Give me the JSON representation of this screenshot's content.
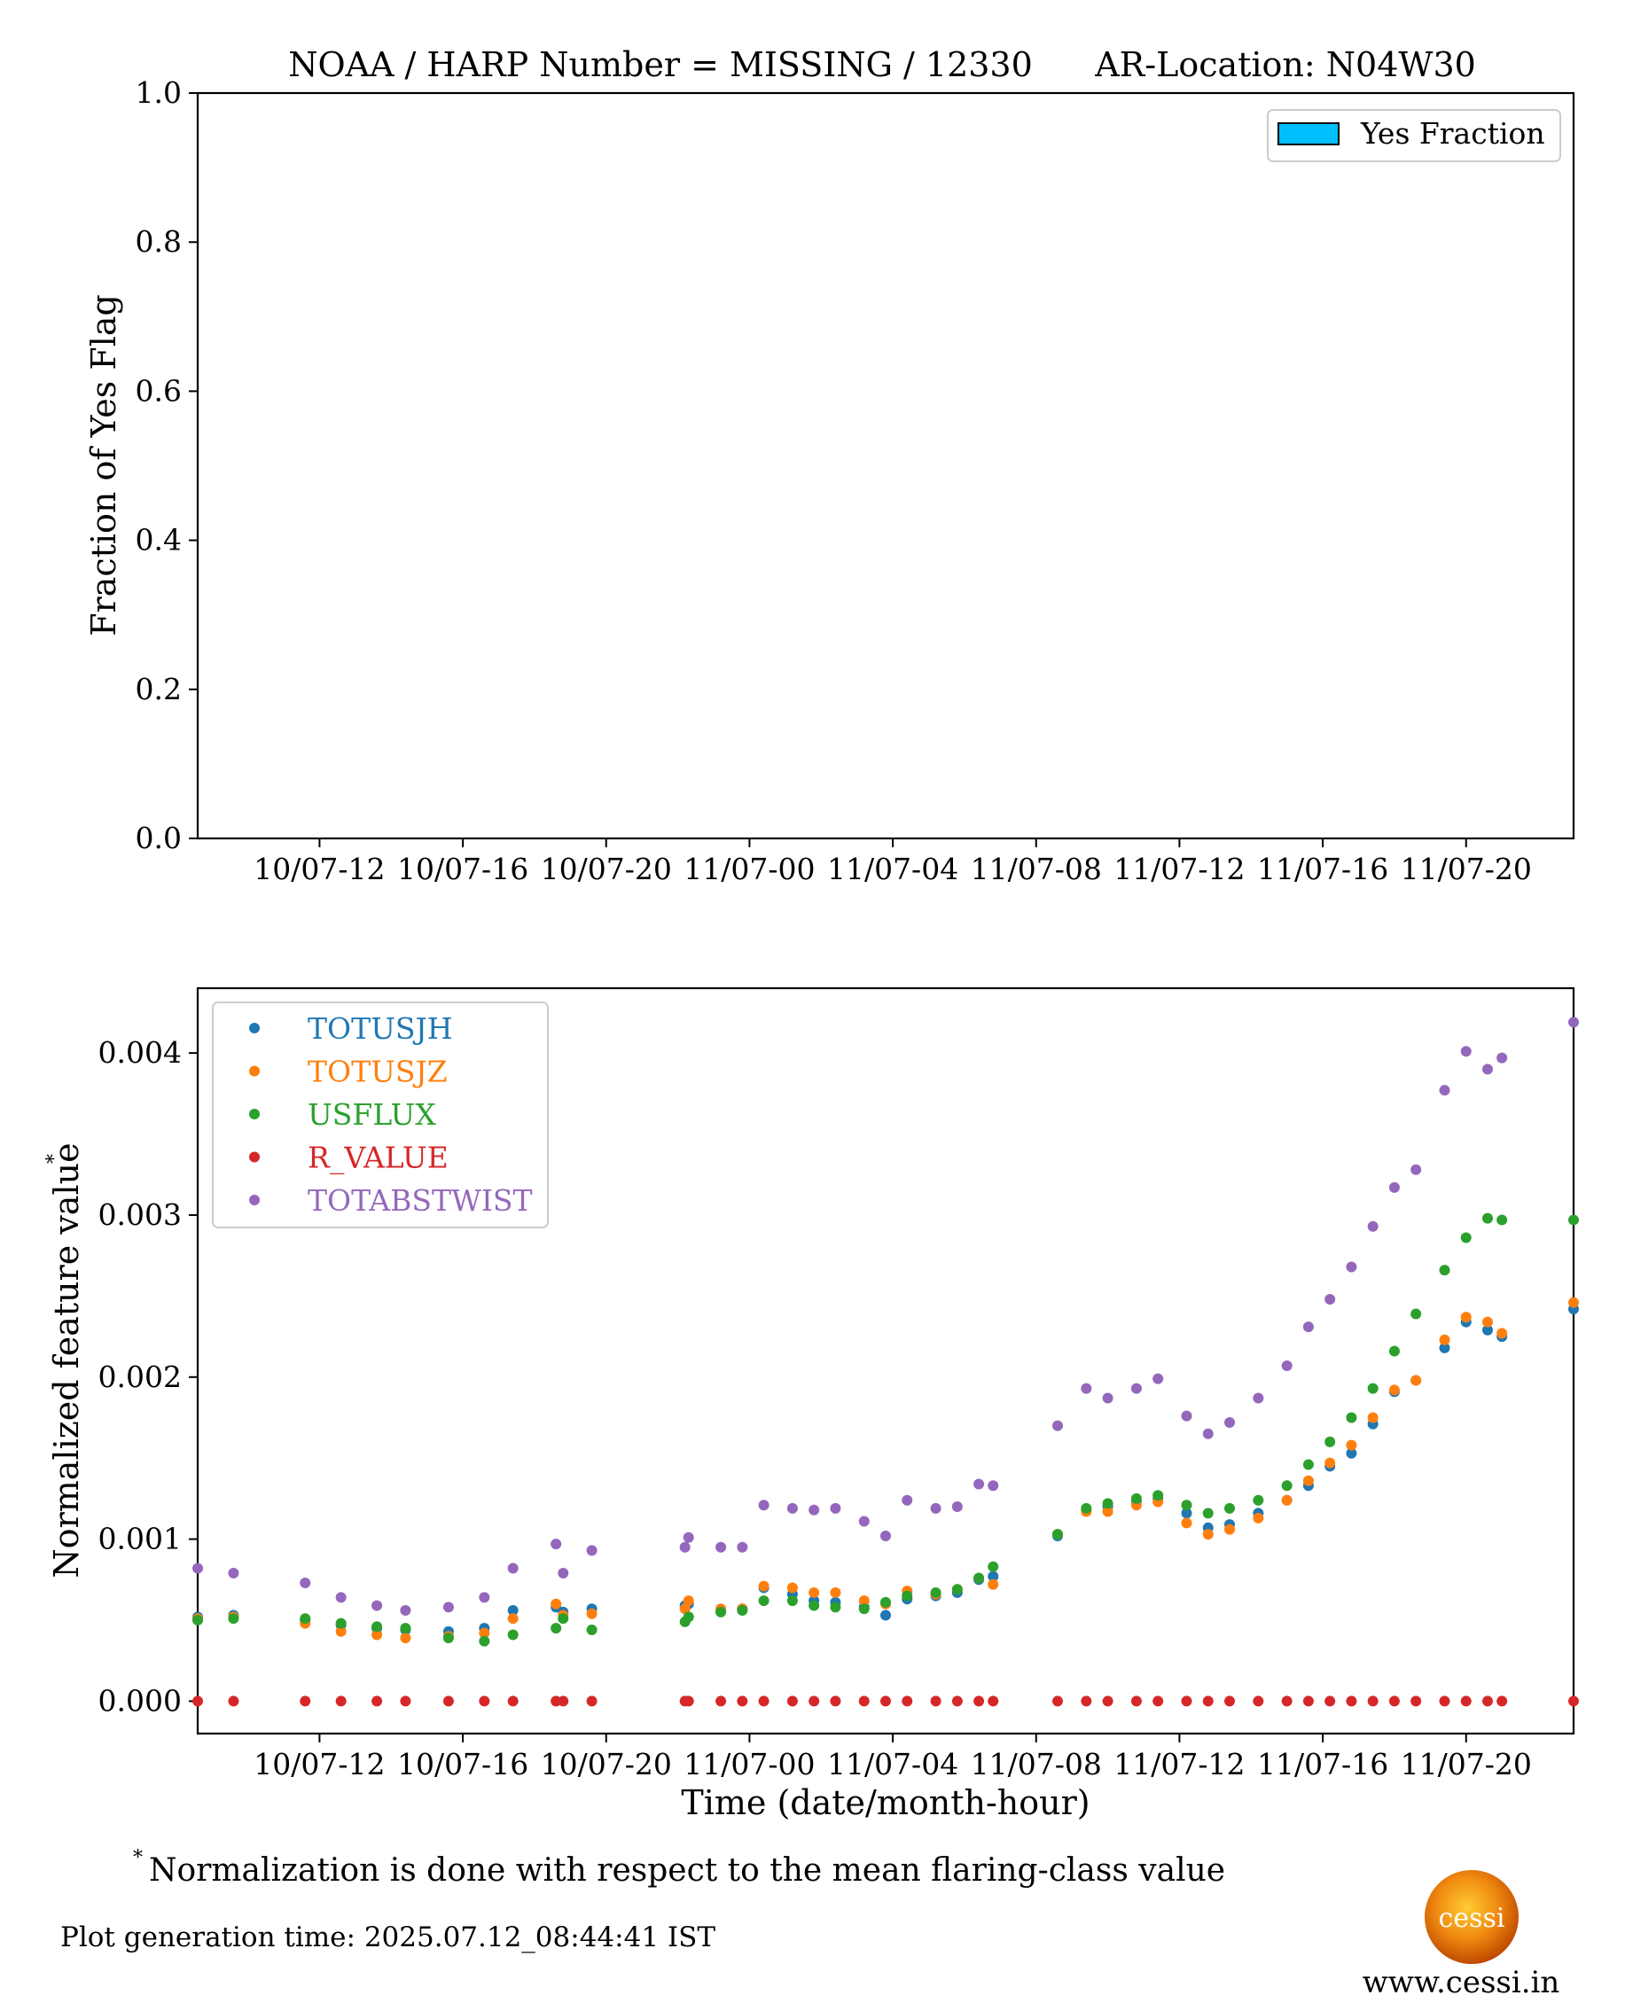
{
  "title": {
    "left": "NOAA / HARP Number = MISSING / 12330",
    "right": "AR-Location: N04W30"
  },
  "top_chart": {
    "ylabel": "Fraction of Yes Flag",
    "yticks": [
      "0.0",
      "0.2",
      "0.4",
      "0.6",
      "0.8",
      "1.0"
    ],
    "xticks": [
      "10/07-12",
      "10/07-16",
      "10/07-20",
      "11/07-00",
      "11/07-04",
      "11/07-08",
      "11/07-12",
      "11/07-16",
      "11/07-20"
    ],
    "legend": "Yes Fraction",
    "legend_color": "#00bfff"
  },
  "bottom_chart": {
    "ylabel": "Normalized feature value",
    "ylabel_sup": "*",
    "xlabel": "Time (date/month-hour)",
    "yticks": [
      "0.000",
      "0.001",
      "0.002",
      "0.003",
      "0.004"
    ],
    "xticks": [
      "10/07-12",
      "10/07-16",
      "10/07-20",
      "11/07-00",
      "11/07-04",
      "11/07-08",
      "11/07-12",
      "11/07-16",
      "11/07-20"
    ]
  },
  "footnote": {
    "mark": "*",
    "text": "Normalization is done with respect to the mean flaring-class value"
  },
  "generation_time": "Plot generation time: 2025.07.12_08:44:41 IST",
  "logo": {
    "text": "cessi",
    "url_text": "www.cessi.in"
  },
  "chart_data": [
    {
      "type": "bar",
      "title": "NOAA / HARP Number = MISSING / 12330      AR-Location: N04W30",
      "ylabel": "Fraction of Yes Flag",
      "ylim": [
        0,
        1.0
      ],
      "xlim": [
        "10/07-08:36",
        "11/07-22:24"
      ],
      "series": [
        {
          "name": "Yes Fraction",
          "values": []
        }
      ]
    },
    {
      "type": "scatter",
      "xlabel": "Time (date/month-hour)",
      "ylabel": "Normalized feature value*",
      "xlim": [
        "10/07-08:36",
        "11/07-22:24"
      ],
      "ylim": [
        -0.0002,
        0.0044
      ],
      "x_hours_from_10/07-00": [
        8.6,
        9.6,
        11.6,
        12.6,
        13.6,
        14.4,
        15.6,
        16.6,
        17.4,
        18.6,
        18.8,
        19.6,
        22.2,
        22.3,
        23.2,
        23.8,
        24.4,
        25.2,
        25.8,
        26.4,
        27.2,
        27.8,
        28.4,
        29.2,
        29.8,
        30.4,
        30.8,
        32.6,
        33.4,
        34.0,
        34.8,
        35.4,
        36.2,
        36.8,
        37.4,
        38.2,
        39.0,
        39.6,
        40.2,
        40.8,
        41.4,
        42.0,
        42.6,
        43.4,
        44.0,
        44.6,
        45.0,
        47.0
      ],
      "series": [
        {
          "name": "TOTUSJH",
          "color": "#1f77b4",
          "values": [
            0.00052,
            0.00053,
            0.0005,
            0.00047,
            0.00045,
            0.00044,
            0.00043,
            0.00045,
            0.00056,
            0.00058,
            0.00055,
            0.00057,
            0.00059,
            0.0006,
            0.00056,
            0.00057,
            0.0007,
            0.00066,
            0.00062,
            0.00061,
            0.00058,
            0.00053,
            0.00063,
            0.00065,
            0.00067,
            0.00075,
            0.00077,
            0.00102,
            0.00118,
            0.0012,
            0.00123,
            0.00125,
            0.00116,
            0.00107,
            0.00109,
            0.00116,
            0.00124,
            0.00133,
            0.00145,
            0.00153,
            0.00171,
            0.00191,
            0.00198,
            0.00218,
            0.00234,
            0.00229,
            0.00225,
            0.00242
          ]
        },
        {
          "name": "TOTUSJZ",
          "color": "#ff7f0e",
          "values": [
            0.00051,
            0.00052,
            0.00048,
            0.00043,
            0.00041,
            0.00039,
            0.0004,
            0.00042,
            0.00051,
            0.0006,
            0.00053,
            0.00054,
            0.00057,
            0.00062,
            0.00057,
            0.00057,
            0.00071,
            0.0007,
            0.00067,
            0.00067,
            0.00062,
            0.0006,
            0.00068,
            0.00066,
            0.00069,
            0.00076,
            0.00072,
            0.00103,
            0.00117,
            0.00117,
            0.00121,
            0.00123,
            0.0011,
            0.00103,
            0.00106,
            0.00113,
            0.00124,
            0.00136,
            0.00147,
            0.00158,
            0.00175,
            0.00192,
            0.00198,
            0.00223,
            0.00237,
            0.00234,
            0.00227,
            0.00246
          ]
        },
        {
          "name": "USFLUX",
          "color": "#2ca02c",
          "values": [
            0.0005,
            0.00051,
            0.00051,
            0.00048,
            0.00046,
            0.00045,
            0.00039,
            0.00037,
            0.00041,
            0.00045,
            0.00051,
            0.00044,
            0.00049,
            0.00052,
            0.00055,
            0.00056,
            0.00062,
            0.00062,
            0.00059,
            0.00058,
            0.00057,
            0.00061,
            0.00065,
            0.00067,
            0.00069,
            0.00076,
            0.00083,
            0.00103,
            0.00119,
            0.00122,
            0.00125,
            0.00127,
            0.00121,
            0.00116,
            0.00119,
            0.00124,
            0.00133,
            0.00146,
            0.0016,
            0.00175,
            0.00193,
            0.00216,
            0.00239,
            0.00266,
            0.00286,
            0.00298,
            0.00297,
            0.00297
          ]
        },
        {
          "name": "R_VALUE",
          "color": "#d62728",
          "values": [
            0,
            0,
            0,
            0,
            0,
            0,
            0,
            0,
            0,
            0,
            0,
            0,
            0,
            0,
            0,
            0,
            0,
            0,
            0,
            0,
            0,
            0,
            0,
            0,
            0,
            0,
            0,
            0,
            0,
            0,
            0,
            0,
            0,
            0,
            0,
            0,
            0,
            0,
            0,
            0,
            0,
            0,
            0,
            0,
            0,
            0,
            0,
            0
          ]
        },
        {
          "name": "TOTABSTWIST",
          "color": "#9467bd",
          "values": [
            0.00082,
            0.00079,
            0.00073,
            0.00064,
            0.00059,
            0.00056,
            0.00058,
            0.00064,
            0.00082,
            0.00097,
            0.00079,
            0.00093,
            0.00095,
            0.00101,
            0.00095,
            0.00095,
            0.00121,
            0.00119,
            0.00118,
            0.00119,
            0.00111,
            0.00102,
            0.00124,
            0.00119,
            0.0012,
            0.00134,
            0.00133,
            0.0017,
            0.00193,
            0.00187,
            0.00193,
            0.00199,
            0.00176,
            0.00165,
            0.00172,
            0.00187,
            0.00207,
            0.00231,
            0.00248,
            0.00268,
            0.00293,
            0.00317,
            0.00328,
            0.00377,
            0.00401,
            0.0039,
            0.00397,
            0.00419
          ]
        }
      ],
      "legend_placement": "top-left"
    }
  ]
}
